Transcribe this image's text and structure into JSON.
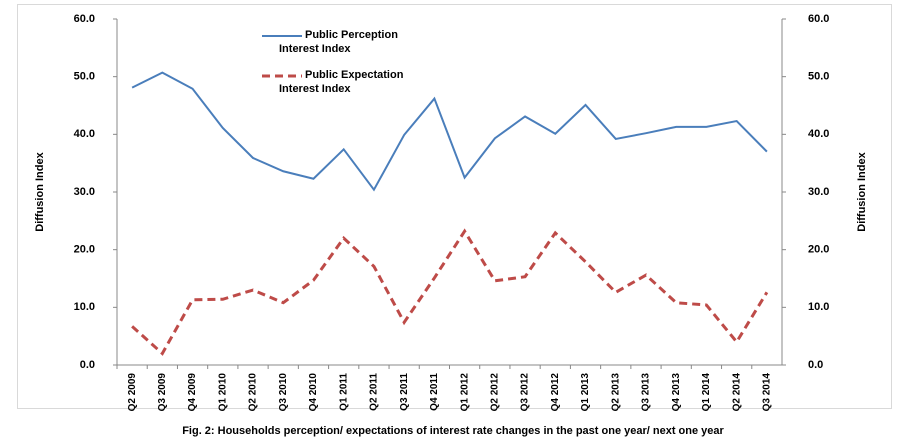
{
  "chart_data": {
    "type": "line",
    "caption": "Fig. 2:  Households  perception/ expectations of interest rate changes in the past one year/ next one year",
    "ylabel": "Diffusion Index",
    "y2label": "Diffusion Index",
    "categories": [
      "Q2 2009",
      "Q3 2009",
      "Q4 2009",
      "Q1 2010",
      "Q2 2010",
      "Q3 2010",
      "Q4 2010",
      "Q1 2011",
      "Q2 2011",
      "Q3 2011",
      "Q4 2011",
      "Q1 2012",
      "Q2 2012",
      "Q3 2012",
      "Q4 2012",
      "Q1 2013",
      "Q2 2013",
      "Q3 2013",
      "Q4 2013",
      "Q1 2014",
      "Q2 2014",
      "Q3 2014"
    ],
    "series": [
      {
        "name": "Public Perception Interest Index",
        "color": "#4a7ebb",
        "dashed": false,
        "values": [
          48.1,
          50.7,
          47.9,
          41.1,
          35.9,
          33.6,
          32.3,
          37.4,
          30.4,
          39.9,
          46.2,
          32.5,
          39.3,
          43.1,
          40.1,
          45.1,
          39.2,
          40.2,
          41.3,
          41.3,
          42.3,
          37.0
        ]
      },
      {
        "name": "Public Expectation Interest Index",
        "color": "#be4b48",
        "dashed": true,
        "axis": "y2",
        "values": [
          6.7,
          2.0,
          11.3,
          11.4,
          13.0,
          10.8,
          14.7,
          22.0,
          17.1,
          7.4,
          15.1,
          23.2,
          14.6,
          15.3,
          22.9,
          17.9,
          12.6,
          15.6,
          10.8,
          10.4,
          4.0,
          12.6
        ]
      }
    ],
    "ylim": [
      0,
      60
    ],
    "yticks": [
      {
        "value": 0,
        "label": "0.0"
      },
      {
        "value": 10,
        "label": "10.0"
      },
      {
        "value": 20,
        "label": "20.0"
      },
      {
        "value": 30,
        "label": "30.0"
      },
      {
        "value": 40,
        "label": "40.0"
      },
      {
        "value": 50,
        "label": "50.0"
      },
      {
        "value": 60,
        "label": "60.0"
      }
    ],
    "y2lim": [
      0,
      60
    ],
    "y2ticks": [
      {
        "value": 0,
        "label": "0.0"
      },
      {
        "value": 10,
        "label": "10.0"
      },
      {
        "value": 20,
        "label": "20.0"
      },
      {
        "value": 30,
        "label": "30.0"
      },
      {
        "value": 40,
        "label": "40.0"
      },
      {
        "value": 50,
        "label": "50.0"
      },
      {
        "value": 60,
        "label": "60.0"
      }
    ],
    "grid": false
  }
}
